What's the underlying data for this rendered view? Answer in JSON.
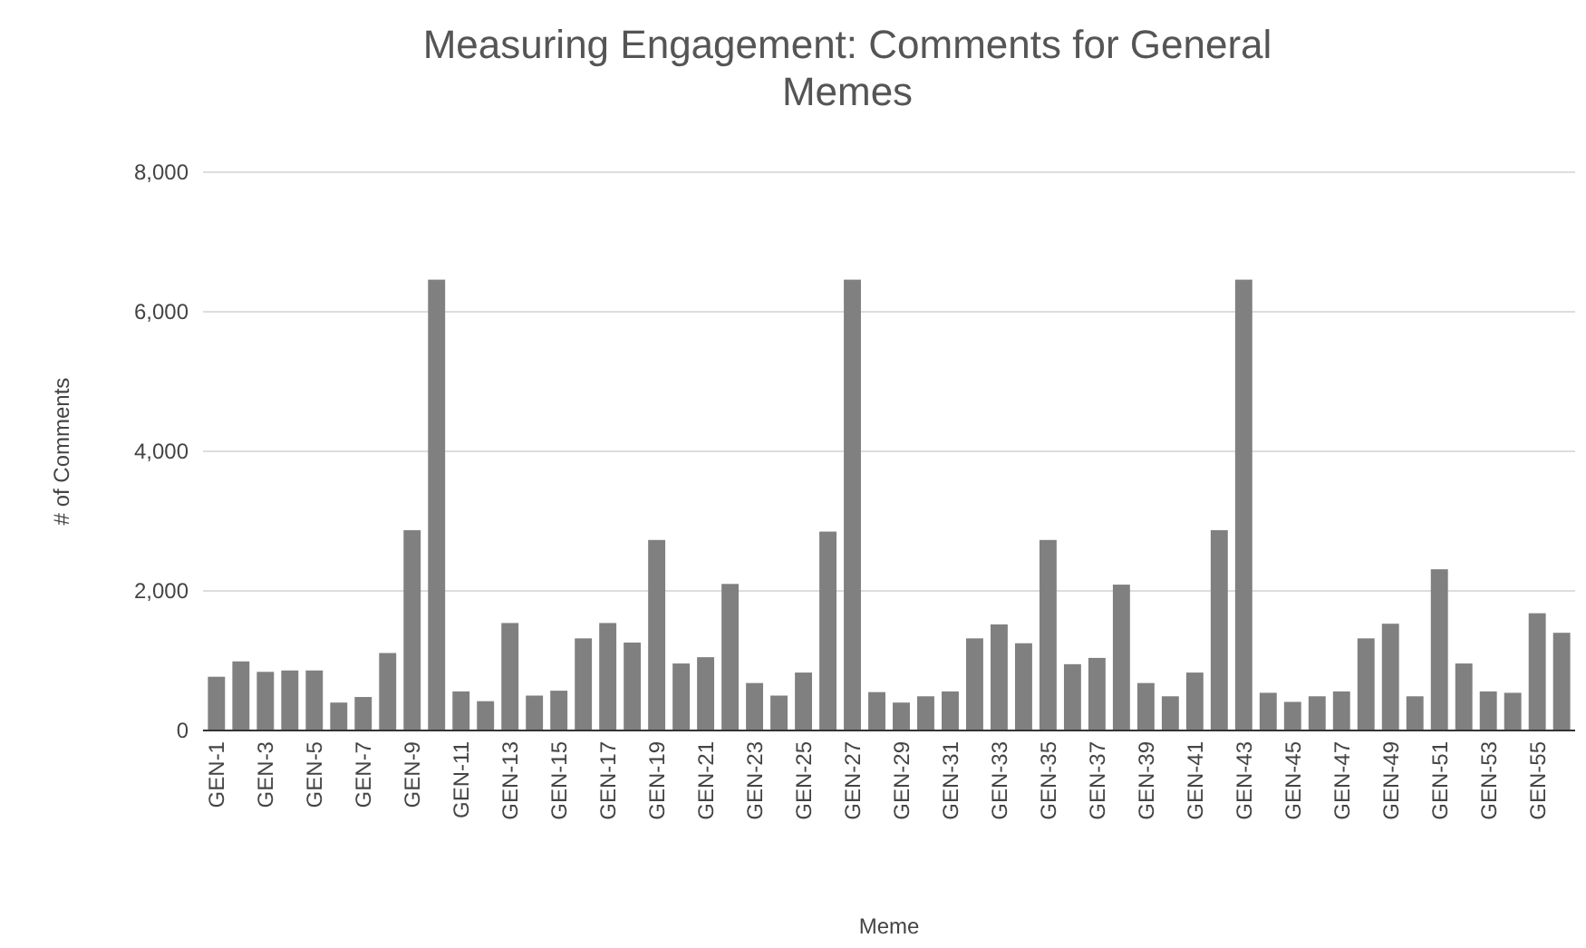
{
  "chart_data": {
    "type": "bar",
    "title": "Measuring Engagement: Comments for General Memes",
    "xlabel": "Meme",
    "ylabel": "# of Comments",
    "categories": [
      "GEN-1",
      null,
      "GEN-3",
      null,
      "GEN-5",
      null,
      "GEN-7",
      null,
      "GEN-9",
      null,
      "GEN-11",
      null,
      "GEN-13",
      null,
      "GEN-15",
      null,
      "GEN-17",
      null,
      "GEN-19",
      null,
      "GEN-21",
      null,
      "GEN-23",
      null,
      "GEN-25",
      null,
      "GEN-27",
      null,
      "GEN-29",
      null,
      "GEN-31",
      null,
      "GEN-33",
      null,
      "GEN-35",
      null,
      "GEN-37",
      null,
      "GEN-39",
      null,
      "GEN-41",
      null,
      "GEN-43",
      null,
      "GEN-45",
      null,
      "GEN-47",
      null,
      "GEN-49",
      null,
      "GEN-51",
      null,
      "GEN-53",
      null,
      "GEN-55",
      null
    ],
    "values": [
      770,
      990,
      840,
      860,
      860,
      400,
      480,
      1110,
      2870,
      6460,
      560,
      420,
      1540,
      500,
      570,
      1320,
      1540,
      1260,
      2730,
      960,
      1050,
      2100,
      680,
      500,
      830,
      2850,
      6460,
      550,
      400,
      490,
      560,
      1320,
      1520,
      1250,
      2730,
      950,
      1040,
      2090,
      680,
      490,
      830,
      2870,
      6460,
      540,
      410,
      490,
      560,
      1320,
      1530,
      490,
      2310,
      960,
      560,
      540,
      1680,
      1400
    ],
    "color": "#808080",
    "ylim": [
      0,
      8000
    ],
    "yticks": [
      0,
      {
        "value": 2000,
        "label": "2,000"
      },
      {
        "value": 4000,
        "label": "4,000"
      },
      {
        "value": 6000,
        "label": "6,000"
      },
      {
        "value": 8000,
        "label": "8,000"
      }
    ],
    "grid": "y"
  }
}
